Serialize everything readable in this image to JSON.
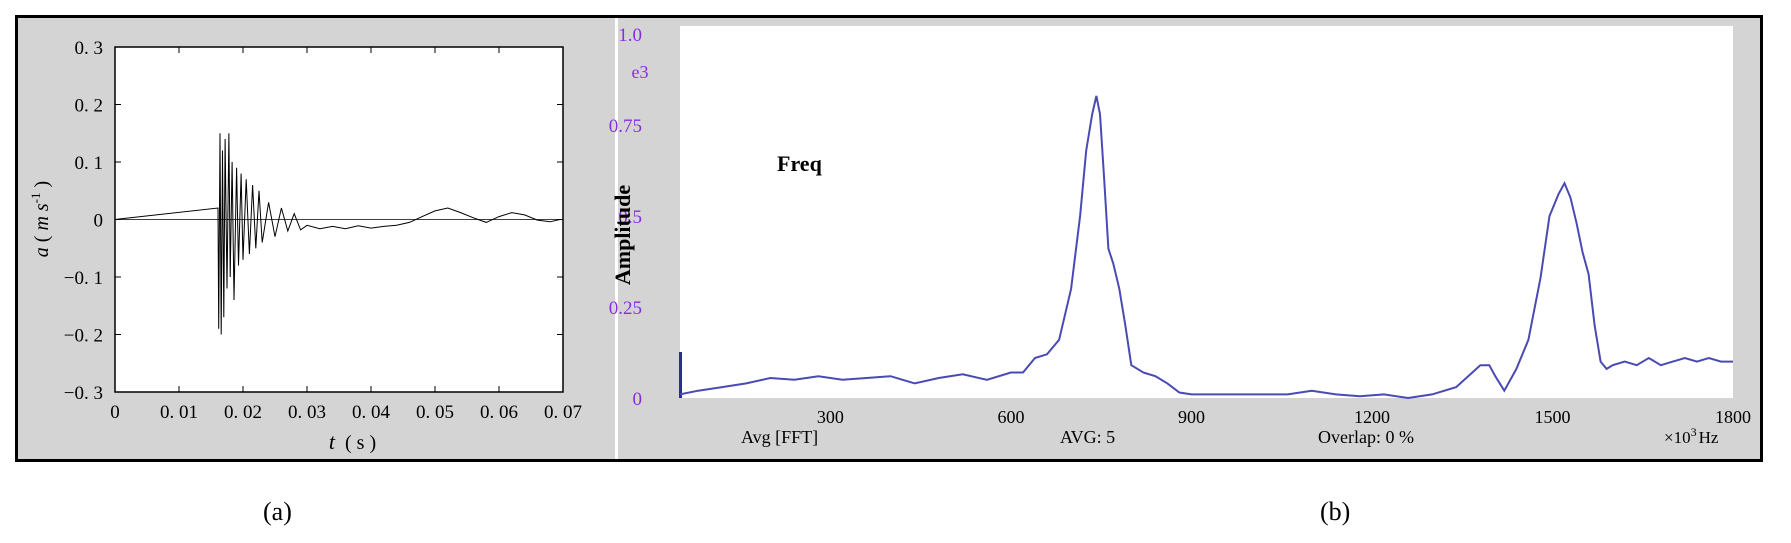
{
  "colors": {
    "accent_purple": "#8a2be2",
    "trace_blue": "#4a4ab4",
    "panel_gray": "#d4d4d4",
    "plot_white": "#ffffff"
  },
  "captions": {
    "a": "(a)",
    "b": "(b)"
  },
  "chart_data": [
    {
      "type": "line",
      "xlabel_var": "t",
      "xlabel_unit": "s",
      "ylabel_var": "a",
      "ylabel_unit": "m s",
      "ylabel_exp": "-1",
      "xlim": [
        0,
        0.07
      ],
      "ylim": [
        -0.3,
        0.3
      ],
      "x_ticks": [
        "0",
        "0. 01",
        "0. 02",
        "0. 03",
        "0. 04",
        "0. 05",
        "0. 06",
        "0. 07"
      ],
      "y_ticks": [
        "0. 3",
        "0. 2",
        "0. 1",
        "0",
        "−0. 1",
        "−0. 2",
        "−0. 3"
      ],
      "grid": false,
      "series": [
        {
          "description_values_estimated": true,
          "x": [
            0,
            0.0161,
            0.0162,
            0.0164,
            0.0166,
            0.0168,
            0.017,
            0.0172,
            0.0175,
            0.0178,
            0.018,
            0.0183,
            0.0186,
            0.019,
            0.0193,
            0.0197,
            0.02,
            0.0205,
            0.021,
            0.0215,
            0.022,
            0.0225,
            0.023,
            0.024,
            0.025,
            0.026,
            0.027,
            0.028,
            0.029,
            0.03,
            0.032,
            0.034,
            0.036,
            0.038,
            0.04,
            0.042,
            0.044,
            0.046,
            0.048,
            0.05,
            0.052,
            0.054,
            0.056,
            0.058,
            0.06,
            0.062,
            0.064,
            0.066,
            0.068,
            0.0695
          ],
          "y": [
            0,
            0.02,
            -0.19,
            0.15,
            -0.2,
            0.12,
            -0.17,
            0.14,
            -0.12,
            0.15,
            -0.1,
            0.1,
            -0.14,
            0.09,
            -0.08,
            0.08,
            -0.07,
            0.07,
            -0.06,
            0.06,
            -0.05,
            0.05,
            -0.04,
            0.03,
            -0.03,
            0.02,
            -0.02,
            0.01,
            -0.018,
            -0.01,
            -0.016,
            -0.012,
            -0.016,
            -0.011,
            -0.015,
            -0.012,
            -0.01,
            -0.005,
            0.005,
            0.015,
            0.02,
            0.012,
            0.003,
            -0.005,
            0.005,
            0.012,
            0.008,
            -0.001,
            -0.004,
            0.0
          ]
        }
      ]
    },
    {
      "type": "line",
      "ylabel": "Amplitude",
      "y_multiplier": "e3",
      "legend_label": "Freq",
      "xlim": [
        50,
        1800
      ],
      "ylim": [
        0,
        1.0
      ],
      "x_ticks": [
        300,
        600,
        900,
        1200,
        1500,
        1800
      ],
      "y_ticks": [
        "1.0",
        "0.75",
        "0.5",
        "0.25",
        "0"
      ],
      "x_unit": "×10",
      "x_unit_exp": "3",
      "x_unit_suffix": "Hz",
      "footer": {
        "avg_type": "Avg [FFT]",
        "avg_count": "AVG: 5",
        "overlap": "Overlap: 0 %"
      },
      "series": [
        {
          "x": [
            50,
            80,
            120,
            160,
            200,
            240,
            280,
            320,
            360,
            400,
            440,
            480,
            520,
            560,
            600,
            620,
            640,
            660,
            680,
            700,
            715,
            725,
            735,
            742,
            748,
            755,
            762,
            770,
            780,
            790,
            800,
            820,
            840,
            860,
            880,
            900,
            940,
            980,
            1020,
            1060,
            1100,
            1140,
            1180,
            1220,
            1260,
            1300,
            1340,
            1360,
            1380,
            1395,
            1405,
            1420,
            1440,
            1460,
            1480,
            1495,
            1510,
            1520,
            1530,
            1540,
            1550,
            1560,
            1570,
            1580,
            1590,
            1600,
            1620,
            1640,
            1660,
            1680,
            1700,
            1720,
            1740,
            1760,
            1780,
            1800
          ],
          "y": [
            0.01,
            0.02,
            0.03,
            0.04,
            0.055,
            0.05,
            0.06,
            0.05,
            0.055,
            0.06,
            0.04,
            0.055,
            0.065,
            0.05,
            0.07,
            0.07,
            0.11,
            0.12,
            0.16,
            0.3,
            0.5,
            0.68,
            0.78,
            0.83,
            0.78,
            0.6,
            0.41,
            0.37,
            0.3,
            0.2,
            0.09,
            0.07,
            0.06,
            0.04,
            0.015,
            0.01,
            0.01,
            0.01,
            0.01,
            0.01,
            0.02,
            0.01,
            0.005,
            0.01,
            0.0,
            0.01,
            0.03,
            0.06,
            0.09,
            0.09,
            0.06,
            0.02,
            0.08,
            0.16,
            0.33,
            0.5,
            0.56,
            0.59,
            0.55,
            0.48,
            0.4,
            0.34,
            0.2,
            0.1,
            0.08,
            0.09,
            0.1,
            0.09,
            0.11,
            0.09,
            0.1,
            0.11,
            0.1,
            0.11,
            0.1,
            0.1
          ]
        }
      ]
    }
  ]
}
